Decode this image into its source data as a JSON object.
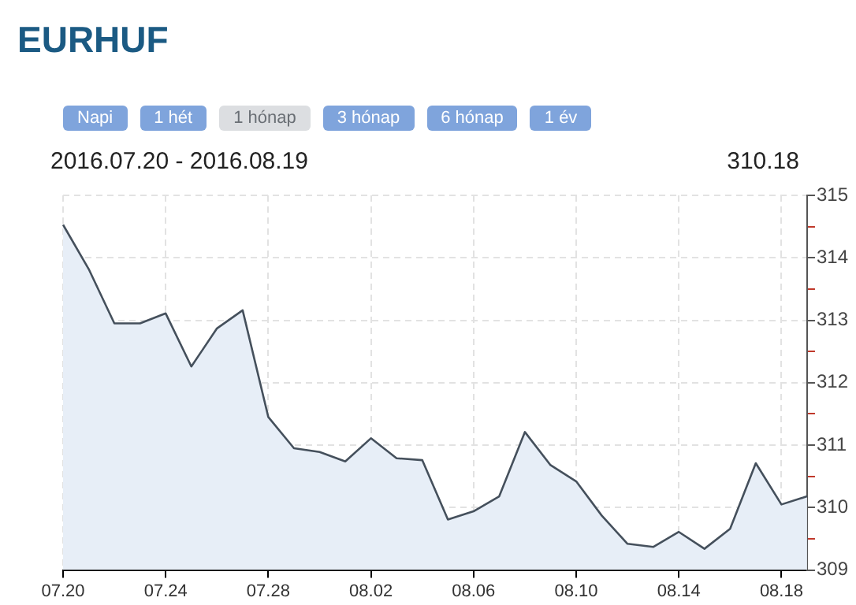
{
  "chart_data": {
    "type": "area",
    "title": "EURHUF",
    "subtitle": "2016.07.20 - 2016.08.19",
    "annotations": [
      "310.18",
      "Napi",
      "1 hét",
      "1 hónap",
      "3 hónap",
      "6 hónap",
      "1 év"
    ],
    "categories": [
      "07.20",
      null,
      null,
      null,
      "07.24",
      null,
      null,
      null,
      "07.28",
      null,
      null,
      null,
      "08.02",
      null,
      null,
      null,
      "08.06",
      null,
      null,
      null,
      "08.10",
      null,
      null,
      null,
      "08.14",
      null,
      null,
      null,
      "08.18",
      null
    ],
    "series": [
      {
        "color": "#45505c",
        "values": [
          314.53,
          313.82,
          312.95,
          312.95,
          313.11,
          312.26,
          312.87,
          313.16,
          311.45,
          310.95,
          310.89,
          310.74,
          311.11,
          310.79,
          310.76,
          309.81,
          309.94,
          310.18,
          311.21,
          310.68,
          310.42,
          309.87,
          309.42,
          309.37,
          309.61,
          309.34,
          309.66,
          310.71,
          310.05,
          310.18
        ]
      }
    ],
    "ylim": [
      309,
      315
    ],
    "yticks": [
      309,
      {
        "value": 309.5,
        "label": null
      },
      310,
      {
        "value": 310.5,
        "label": null
      },
      311,
      {
        "value": 311.5,
        "label": null
      },
      312,
      {
        "value": 312.5,
        "label": null
      },
      313,
      {
        "value": 313.5,
        "label": null
      },
      314,
      {
        "value": 314.5,
        "label": null
      },
      315
    ],
    "grid": true,
    "legend": false,
    "marker": "none",
    "line_style": "solid"
  }
}
